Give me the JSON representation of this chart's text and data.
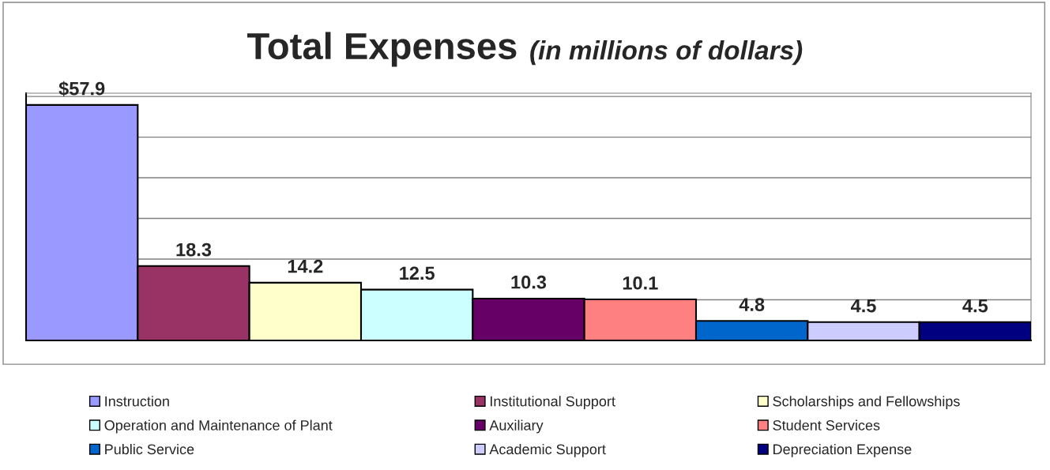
{
  "chart_data": {
    "type": "bar",
    "title": "Total Expenses",
    "subtitle": "(in millions of dollars)",
    "categories": [
      null
    ],
    "series": [
      {
        "name": "Instruction",
        "color": "#9999ff",
        "values": [
          57.9
        ],
        "value_labels": [
          "$57.9"
        ]
      },
      {
        "name": "Institutional Support",
        "color": "#993366",
        "values": [
          18.3
        ],
        "value_labels": [
          "18.3"
        ]
      },
      {
        "name": "Scholarships and Fellowships",
        "color": "#ffffcc",
        "values": [
          14.2
        ],
        "value_labels": [
          "14.2"
        ]
      },
      {
        "name": "Operation and Maintenance of Plant",
        "color": "#ccffff",
        "values": [
          12.5
        ],
        "value_labels": [
          "12.5"
        ]
      },
      {
        "name": "Auxiliary",
        "color": "#660066",
        "values": [
          10.3
        ],
        "value_labels": [
          "10.3"
        ]
      },
      {
        "name": "Student Services",
        "color": "#ff8080",
        "values": [
          10.1
        ],
        "value_labels": [
          "10.1"
        ]
      },
      {
        "name": "Public Service",
        "color": "#0066cc",
        "values": [
          4.8
        ],
        "value_labels": [
          "4.8"
        ]
      },
      {
        "name": "Academic Support",
        "color": "#ccccff",
        "values": [
          4.5
        ],
        "value_labels": [
          "4.5"
        ]
      },
      {
        "name": "Depreciation Expense",
        "color": "#000080",
        "values": [
          4.5
        ],
        "value_labels": [
          "4.5"
        ]
      }
    ],
    "grid": "y",
    "legend": "bottom",
    "tick_labels": false
  }
}
